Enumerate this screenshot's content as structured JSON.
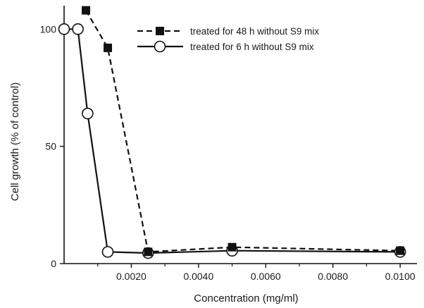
{
  "chart_data": {
    "type": "line",
    "xlabel": "Concentration (mg/ml)",
    "ylabel": "Cell growth (% of control)",
    "xlim": [
      0,
      0.0105
    ],
    "ylim": [
      0,
      110
    ],
    "x_ticks": [
      0.002,
      0.004,
      0.006,
      0.008,
      0.01
    ],
    "x_tick_labels": [
      "0.0020",
      "0.0040",
      "0.0060",
      "0.0080",
      "0.0100"
    ],
    "y_ticks": [
      0,
      50,
      100
    ],
    "y_tick_labels": [
      "0",
      "50",
      "100"
    ],
    "legend_position": "top-right",
    "series": [
      {
        "name": "treated for 48 h without S9 mix",
        "line_style": "dashed",
        "marker": "filled-square",
        "x": [
          0.00065,
          0.0013,
          0.0025,
          0.005,
          0.01
        ],
        "y": [
          108,
          92,
          5,
          7,
          5.5
        ]
      },
      {
        "name": "treated for 6 h without S9 mix",
        "line_style": "solid",
        "marker": "open-circle",
        "x": [
          0.0,
          0.00041,
          0.0007,
          0.0013,
          0.0025,
          0.005,
          0.01
        ],
        "y": [
          100,
          100,
          64,
          5,
          4.5,
          5.5,
          5
        ]
      }
    ]
  }
}
